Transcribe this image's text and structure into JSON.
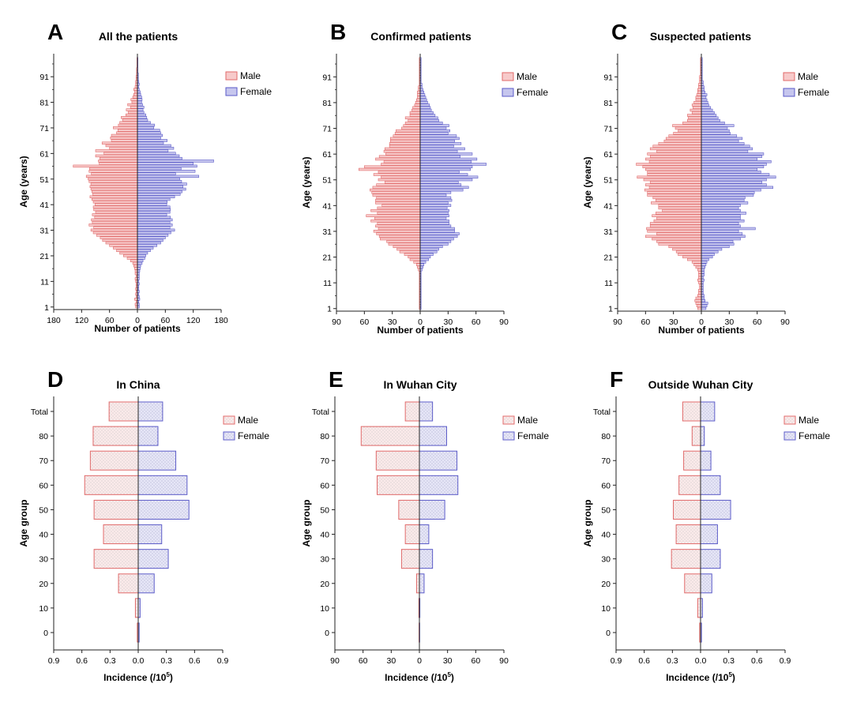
{
  "figure": {
    "legend_labels": [
      "Male",
      "Female"
    ]
  },
  "colors": {
    "male_stroke": "#e06a6a",
    "male_fill": "#f7caca",
    "female_stroke": "#5b5bc8",
    "female_fill": "#c6c6ee",
    "male_group_fill": "#fbeaea",
    "female_group_fill": "#e6e6f7",
    "axis": "#222222"
  },
  "chart_data": [
    {
      "panel": "A",
      "type": "bar",
      "orientation": "horizontal-pyramid",
      "title": "All the patients",
      "xlabel": "Number of patients",
      "ylabel": "Age (years)",
      "xlim": [
        -180,
        180
      ],
      "ylim": [
        0,
        100
      ],
      "x_ticks": [
        "180",
        "120",
        "60",
        "0",
        "60",
        "120",
        "180"
      ],
      "y_ticks": [
        "1",
        "11",
        "21",
        "31",
        "41",
        "51",
        "61",
        "71",
        "81",
        "91"
      ],
      "legend": "top-right",
      "ages": [
        1,
        2,
        3,
        4,
        5,
        6,
        7,
        8,
        9,
        10,
        11,
        12,
        13,
        14,
        15,
        16,
        17,
        18,
        19,
        20,
        21,
        22,
        23,
        24,
        25,
        26,
        27,
        28,
        29,
        30,
        31,
        32,
        33,
        34,
        35,
        36,
        37,
        38,
        39,
        40,
        41,
        42,
        43,
        44,
        45,
        46,
        47,
        48,
        49,
        50,
        51,
        52,
        53,
        54,
        55,
        56,
        57,
        58,
        59,
        60,
        61,
        62,
        63,
        64,
        65,
        66,
        67,
        68,
        69,
        70,
        71,
        72,
        73,
        74,
        75,
        76,
        77,
        78,
        79,
        80,
        81,
        82,
        83,
        84,
        85,
        86,
        87,
        88,
        89,
        90,
        91,
        92,
        93,
        94,
        95,
        96,
        97,
        98
      ],
      "series": [
        {
          "name": "Male",
          "values": [
            4,
            5,
            3,
            6,
            3,
            4,
            3,
            4,
            3,
            3,
            4,
            5,
            3,
            5,
            5,
            6,
            8,
            10,
            15,
            22,
            30,
            38,
            45,
            52,
            60,
            68,
            75,
            80,
            88,
            95,
            100,
            94,
            104,
            97,
            99,
            92,
            97,
            90,
            94,
            95,
            91,
            95,
            98,
            102,
            96,
            98,
            100,
            102,
            100,
            104,
            106,
            110,
            99,
            104,
            103,
            138,
            82,
            84,
            81,
            90,
            72,
            90,
            60,
            68,
            76,
            56,
            58,
            56,
            45,
            42,
            52,
            41,
            38,
            32,
            35,
            25,
            20,
            24,
            15,
            21,
            12,
            14,
            10,
            8,
            6,
            8,
            5,
            4,
            4,
            3,
            3,
            2,
            2,
            2,
            1,
            1,
            1,
            1
          ]
        },
        {
          "name": "Female",
          "values": [
            4,
            4,
            3,
            5,
            4,
            3,
            4,
            3,
            3,
            4,
            3,
            4,
            4,
            4,
            5,
            6,
            7,
            10,
            12,
            16,
            18,
            22,
            28,
            34,
            42,
            50,
            55,
            60,
            66,
            72,
            80,
            70,
            75,
            70,
            75,
            71,
            63,
            70,
            71,
            70,
            63,
            64,
            70,
            80,
            92,
            96,
            104,
            98,
            106,
            95,
            91,
            132,
            82,
            124,
            94,
            128,
            120,
            164,
            96,
            90,
            82,
            66,
            78,
            72,
            56,
            64,
            50,
            54,
            50,
            48,
            35,
            37,
            28,
            22,
            20,
            18,
            14,
            12,
            14,
            11,
            9,
            10,
            9,
            7,
            6,
            4,
            3,
            4,
            3,
            2,
            2,
            2,
            1,
            1,
            1,
            1,
            1,
            1
          ]
        }
      ]
    },
    {
      "panel": "B",
      "type": "bar",
      "orientation": "horizontal-pyramid",
      "title": "Confirmed patients",
      "xlabel": "Number of patients",
      "ylabel": "Age (years)",
      "xlim": [
        -90,
        90
      ],
      "ylim": [
        0,
        100
      ],
      "x_ticks": [
        "90",
        "60",
        "30",
        "0",
        "30",
        "60",
        "90"
      ],
      "y_ticks": [
        "1",
        "11",
        "21",
        "31",
        "41",
        "51",
        "61",
        "71",
        "81",
        "91"
      ],
      "legend": "top-right",
      "ages": [
        1,
        2,
        3,
        4,
        5,
        6,
        7,
        8,
        9,
        10,
        11,
        12,
        13,
        14,
        15,
        16,
        17,
        18,
        19,
        20,
        21,
        22,
        23,
        24,
        25,
        26,
        27,
        28,
        29,
        30,
        31,
        32,
        33,
        34,
        35,
        36,
        37,
        38,
        39,
        40,
        41,
        42,
        43,
        44,
        45,
        46,
        47,
        48,
        49,
        50,
        51,
        52,
        53,
        54,
        55,
        56,
        57,
        58,
        59,
        60,
        61,
        62,
        63,
        64,
        65,
        66,
        67,
        68,
        69,
        70,
        71,
        72,
        73,
        74,
        75,
        76,
        77,
        78,
        79,
        80,
        81,
        82,
        83,
        84,
        85,
        86,
        87,
        88,
        89,
        90,
        91,
        92,
        93,
        94,
        95,
        96,
        97,
        98
      ],
      "series": [
        {
          "name": "Male",
          "values": [
            1,
            1,
            1,
            1,
            1,
            1,
            1,
            1,
            1,
            1,
            1,
            1,
            1,
            1,
            1,
            2,
            3,
            4,
            7,
            11,
            13,
            17,
            22,
            25,
            29,
            34,
            36,
            43,
            44,
            47,
            50,
            45,
            48,
            46,
            53,
            49,
            58,
            46,
            53,
            46,
            41,
            48,
            48,
            47,
            51,
            52,
            54,
            51,
            47,
            38,
            45,
            42,
            50,
            45,
            66,
            60,
            42,
            39,
            48,
            44,
            37,
            39,
            38,
            33,
            33,
            32,
            32,
            29,
            27,
            26,
            20,
            18,
            16,
            13,
            16,
            11,
            11,
            9,
            8,
            6,
            5,
            4,
            3,
            3,
            3,
            2,
            2,
            1,
            1,
            1,
            1,
            1,
            1,
            1,
            1,
            1,
            1,
            1
          ]
        },
        {
          "name": "Female",
          "values": [
            1,
            1,
            1,
            1,
            1,
            1,
            1,
            1,
            1,
            1,
            1,
            1,
            1,
            1,
            1,
            2,
            3,
            4,
            6,
            9,
            11,
            14,
            18,
            20,
            24,
            30,
            33,
            36,
            40,
            42,
            37,
            37,
            33,
            31,
            31,
            28,
            31,
            30,
            31,
            29,
            33,
            30,
            34,
            33,
            28,
            33,
            46,
            52,
            44,
            41,
            56,
            62,
            51,
            42,
            54,
            56,
            71,
            55,
            61,
            43,
            56,
            40,
            48,
            36,
            44,
            37,
            42,
            39,
            30,
            32,
            28,
            31,
            24,
            20,
            19,
            16,
            14,
            12,
            11,
            10,
            8,
            7,
            6,
            5,
            4,
            3,
            2,
            2,
            1,
            1,
            1,
            1,
            1,
            1,
            1,
            1,
            1,
            1
          ]
        }
      ]
    },
    {
      "panel": "C",
      "type": "bar",
      "orientation": "horizontal-pyramid",
      "title": "Suspected patients",
      "xlabel": "Number of patients",
      "ylabel": "Age (years)",
      "xlim": [
        -90,
        90
      ],
      "ylim": [
        0,
        100
      ],
      "x_ticks": [
        "90",
        "60",
        "30",
        "0",
        "30",
        "60",
        "90"
      ],
      "y_ticks": [
        "1",
        "11",
        "21",
        "31",
        "41",
        "51",
        "61",
        "71",
        "81",
        "91"
      ],
      "legend": "top-right",
      "ages": [
        1,
        2,
        3,
        4,
        5,
        6,
        7,
        8,
        9,
        10,
        11,
        12,
        13,
        14,
        15,
        16,
        17,
        18,
        19,
        20,
        21,
        22,
        23,
        24,
        25,
        26,
        27,
        28,
        29,
        30,
        31,
        32,
        33,
        34,
        35,
        36,
        37,
        38,
        39,
        40,
        41,
        42,
        43,
        44,
        45,
        46,
        47,
        48,
        49,
        50,
        51,
        52,
        53,
        54,
        55,
        56,
        57,
        58,
        59,
        60,
        61,
        62,
        63,
        64,
        65,
        66,
        67,
        68,
        69,
        70,
        71,
        72,
        73,
        74,
        75,
        76,
        77,
        78,
        79,
        80,
        81,
        82,
        83,
        84,
        85,
        86,
        87,
        88,
        89,
        90,
        91,
        92,
        93,
        94,
        95,
        96,
        97,
        98
      ],
      "series": [
        {
          "name": "Male",
          "values": [
            4,
            5,
            6,
            7,
            6,
            4,
            3,
            3,
            2,
            2,
            3,
            4,
            3,
            3,
            3,
            4,
            6,
            8,
            10,
            15,
            20,
            25,
            27,
            31,
            35,
            46,
            48,
            53,
            60,
            48,
            58,
            59,
            55,
            55,
            51,
            48,
            53,
            49,
            42,
            46,
            46,
            54,
            49,
            52,
            58,
            58,
            61,
            56,
            60,
            55,
            62,
            69,
            58,
            58,
            60,
            63,
            70,
            56,
            60,
            55,
            58,
            48,
            55,
            52,
            46,
            40,
            38,
            35,
            30,
            25,
            28,
            31,
            20,
            15,
            14,
            15,
            10,
            12,
            9,
            10,
            8,
            6,
            6,
            5,
            4,
            4,
            3,
            3,
            2,
            2,
            2,
            1,
            1,
            1,
            1,
            1,
            1,
            1
          ]
        },
        {
          "name": "Female",
          "values": [
            5,
            6,
            7,
            4,
            3,
            3,
            2,
            2,
            2,
            2,
            2,
            3,
            2,
            3,
            3,
            3,
            4,
            5,
            6,
            8,
            12,
            14,
            18,
            22,
            30,
            35,
            34,
            42,
            47,
            44,
            40,
            58,
            42,
            40,
            46,
            42,
            42,
            48,
            42,
            40,
            42,
            50,
            46,
            47,
            56,
            57,
            64,
            77,
            70,
            65,
            70,
            80,
            73,
            64,
            60,
            67,
            70,
            75,
            60,
            65,
            67,
            50,
            55,
            52,
            46,
            40,
            44,
            38,
            31,
            30,
            28,
            35,
            25,
            20,
            18,
            16,
            14,
            12,
            10,
            8,
            7,
            6,
            5,
            6,
            4,
            3,
            3,
            2,
            2,
            1,
            1,
            1,
            1,
            1,
            1,
            1,
            1,
            1
          ]
        }
      ]
    },
    {
      "panel": "D",
      "type": "bar",
      "orientation": "horizontal-pyramid",
      "title": "In China",
      "xlabel": "Incidence (/10",
      "xlabel_sup": "5",
      "xlabel_end": ")",
      "ylabel": "Age group",
      "xlim": [
        -0.9,
        0.9
      ],
      "x_ticks": [
        "0.9",
        "0.6",
        "0.3",
        "0.0",
        "0.3",
        "0.6",
        "0.9"
      ],
      "categories": [
        "0",
        "10",
        "20",
        "30",
        "40",
        "50",
        "60",
        "70",
        "80",
        "Total"
      ],
      "legend": "top-right",
      "series": [
        {
          "name": "Male",
          "values": [
            0.01,
            0.03,
            0.21,
            0.47,
            0.37,
            0.47,
            0.57,
            0.51,
            0.48,
            0.31
          ]
        },
        {
          "name": "Female",
          "values": [
            0.01,
            0.02,
            0.17,
            0.32,
            0.25,
            0.54,
            0.52,
            0.4,
            0.21,
            0.26
          ]
        }
      ]
    },
    {
      "panel": "E",
      "type": "bar",
      "orientation": "horizontal-pyramid",
      "title": "In Wuhan City",
      "xlabel": "Incidence (/10",
      "xlabel_sup": "5",
      "xlabel_end": ")",
      "ylabel": "Age group",
      "xlim": [
        -90,
        90
      ],
      "x_ticks": [
        "90",
        "60",
        "30",
        "0",
        "30",
        "60",
        "90"
      ],
      "categories": [
        "0",
        "10",
        "20",
        "30",
        "40",
        "50",
        "60",
        "70",
        "80",
        "Total"
      ],
      "legend": "top-right",
      "series": [
        {
          "name": "Male",
          "values": [
            0.3,
            0.5,
            3,
            19,
            15,
            22,
            45,
            46,
            62,
            15
          ]
        },
        {
          "name": "Female",
          "values": [
            0.3,
            0.5,
            5,
            14,
            10,
            27,
            41,
            40,
            29,
            14
          ]
        }
      ]
    },
    {
      "panel": "F",
      "type": "bar",
      "orientation": "horizontal-pyramid",
      "title": "Outside Wuhan City",
      "xlabel": "Incidence (/10",
      "xlabel_sup": "5",
      "xlabel_end": ")",
      "ylabel": "Age group",
      "xlim": [
        -0.9,
        0.9
      ],
      "x_ticks": [
        "0.9",
        "0.6",
        "0.3",
        "0.0",
        "0.3",
        "0.6",
        "0.9"
      ],
      "categories": [
        "0",
        "10",
        "20",
        "30",
        "40",
        "50",
        "60",
        "70",
        "80",
        "Total"
      ],
      "legend": "top-right",
      "series": [
        {
          "name": "Male",
          "values": [
            0.01,
            0.03,
            0.17,
            0.31,
            0.26,
            0.29,
            0.23,
            0.18,
            0.09,
            0.19
          ]
        },
        {
          "name": "Female",
          "values": [
            0.01,
            0.02,
            0.12,
            0.21,
            0.18,
            0.32,
            0.21,
            0.11,
            0.04,
            0.15
          ]
        }
      ]
    }
  ]
}
